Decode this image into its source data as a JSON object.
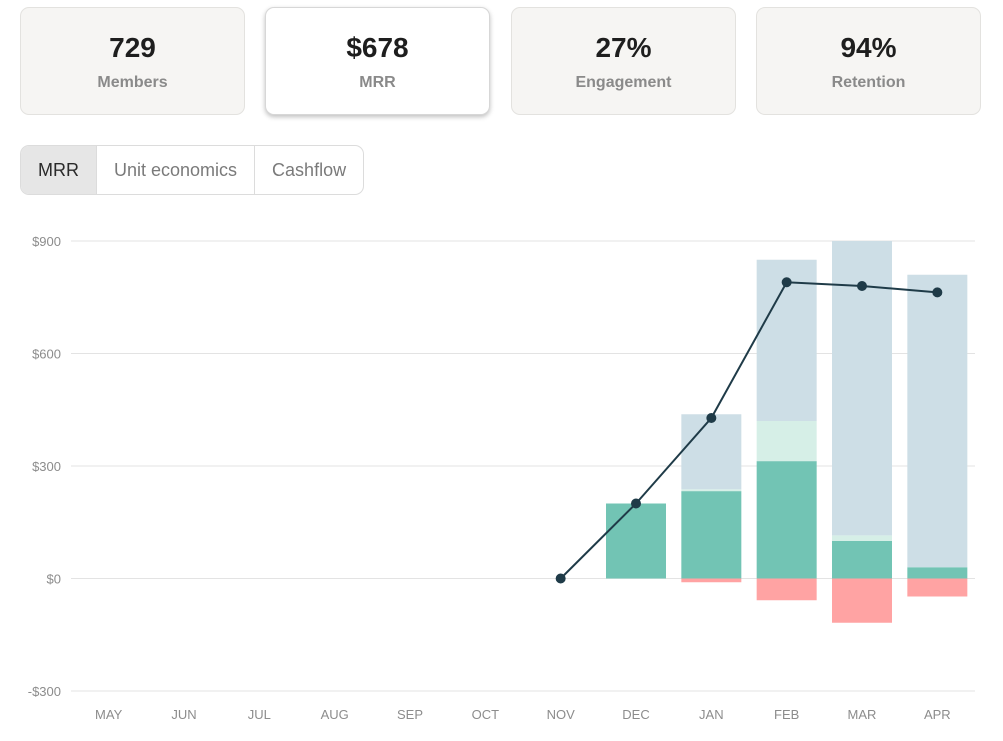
{
  "kpis": [
    {
      "value": "729",
      "label": "Members"
    },
    {
      "value": "$678",
      "label": "MRR"
    },
    {
      "value": "27%",
      "label": "Engagement"
    },
    {
      "value": "94%",
      "label": "Retention"
    }
  ],
  "tabs": [
    {
      "label": "MRR"
    },
    {
      "label": "Unit economics"
    },
    {
      "label": "Cashflow"
    }
  ],
  "chart_data": {
    "type": "bar",
    "categories": [
      "MAY",
      "JUN",
      "JUL",
      "AUG",
      "SEP",
      "OCT",
      "NOV",
      "DEC",
      "JAN",
      "FEB",
      "MAR",
      "APR"
    ],
    "ylim": [
      -300,
      900
    ],
    "yticks": [
      900,
      600,
      300,
      0,
      -300
    ],
    "ytick_labels": [
      "$900",
      "$600",
      "$300",
      "$0",
      "-$300"
    ],
    "grid": true,
    "stacked_bars": [
      {
        "color": "#72c4b4",
        "values": [
          0,
          0,
          0,
          0,
          0,
          0,
          0,
          200,
          233,
          313,
          100,
          30
        ]
      },
      {
        "color": "#d6efe7",
        "values": [
          0,
          0,
          0,
          0,
          0,
          0,
          0,
          0,
          5,
          107,
          15,
          0
        ]
      },
      {
        "color": "#cddee6",
        "values": [
          0,
          0,
          0,
          0,
          0,
          0,
          0,
          0,
          200,
          430,
          785,
          780
        ]
      },
      {
        "color": "#ffa3a3",
        "values": [
          0,
          0,
          0,
          0,
          0,
          0,
          0,
          0,
          -10,
          -58,
          -118,
          -48
        ]
      }
    ],
    "line": {
      "color": "#1f3b48",
      "values": [
        null,
        null,
        null,
        null,
        null,
        null,
        0,
        200,
        428,
        790,
        780,
        763
      ]
    }
  }
}
